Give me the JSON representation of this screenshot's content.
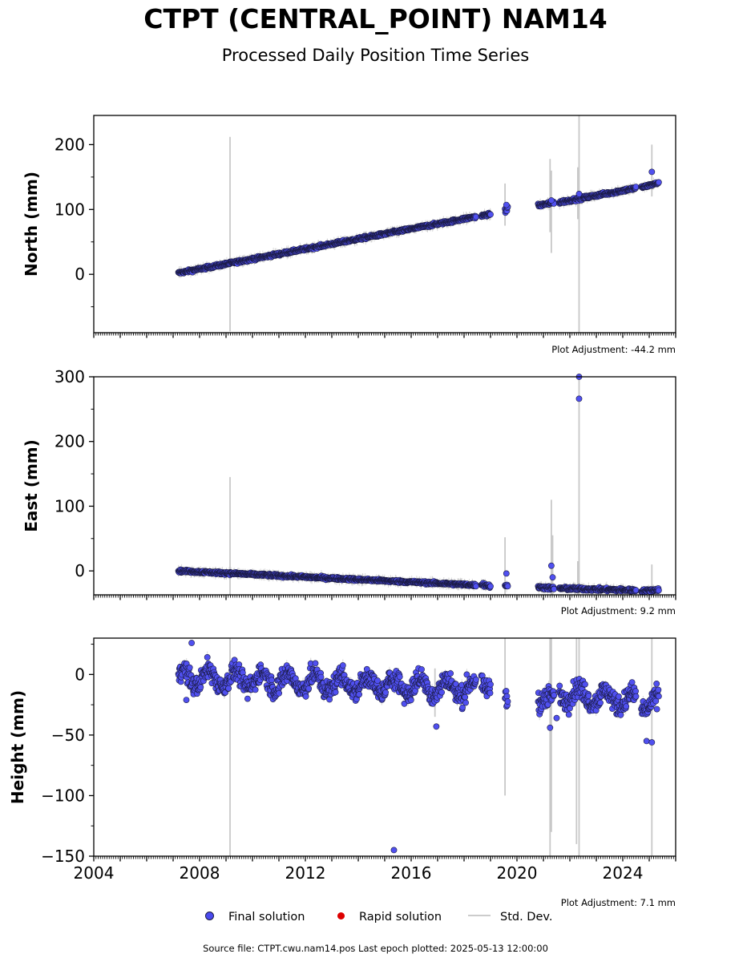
{
  "title": "CTPT (CENTRAL_POINT) NAM14",
  "subtitle": "Processed Daily Position Time Series",
  "footer": "Source file: CTPT.cwu.nam14.pos  Last epoch plotted: 2025-05-13 12:00:00",
  "legend": {
    "items": [
      {
        "label": "Final solution",
        "kind": "dot",
        "color": "#4a4aee"
      },
      {
        "label": "Rapid solution",
        "kind": "dot",
        "color": "#dd0000"
      },
      {
        "label": "Std. Dev.",
        "kind": "line",
        "color": "#cccccc"
      }
    ]
  },
  "colors": {
    "point_fill": "#5050f0",
    "point_edge": "#1a1a40",
    "stddev": "#c8c8c8"
  },
  "chart_data": [
    {
      "type": "scatter",
      "ylabel": "North (mm)",
      "adjustment": "Plot Adjustment: -44.2 mm",
      "ylim": [
        -90,
        245
      ],
      "yticks": [
        0,
        100,
        200
      ],
      "xlim": [
        2004.0,
        2026.0
      ],
      "xticks": [
        2004,
        2008,
        2012,
        2016,
        2020,
        2024
      ],
      "show_xtick_labels": false,
      "segments": [
        {
          "start": 2007.2,
          "end": 2018.45,
          "y0": 2,
          "y1": 89,
          "noise": 1.6
        },
        {
          "start": 2018.65,
          "end": 2019.0,
          "y0": 90,
          "y1": 93,
          "noise": 1.5
        },
        {
          "start": 2019.55,
          "end": 2019.65,
          "y0": 96,
          "y1": 104,
          "noise": 3
        },
        {
          "start": 2020.8,
          "end": 2021.4,
          "y0": 106,
          "y1": 111,
          "noise": 2
        },
        {
          "start": 2021.6,
          "end": 2024.5,
          "y0": 111,
          "y1": 133,
          "noise": 1.8
        },
        {
          "start": 2024.7,
          "end": 2025.36,
          "y0": 134,
          "y1": 141,
          "noise": 1.5
        }
      ],
      "outliers": [
        [
          2025.1,
          158
        ],
        [
          2022.35,
          124
        ],
        [
          2021.3,
          114
        ],
        [
          2019.6,
          107
        ]
      ],
      "stddev_bars": [
        [
          2009.15,
          -88,
          212
        ],
        [
          2021.25,
          65,
          178
        ],
        [
          2021.3,
          33,
          160
        ],
        [
          2022.35,
          -90,
          245
        ],
        [
          2022.3,
          85,
          165
        ],
        [
          2019.55,
          75,
          140
        ],
        [
          2025.1,
          120,
          200
        ]
      ]
    },
    {
      "type": "scatter",
      "ylabel": "East (mm)",
      "adjustment": "Plot Adjustment: 9.2 mm",
      "ylim": [
        -37,
        300
      ],
      "yticks": [
        0,
        100,
        200,
        300
      ],
      "xlim": [
        2004.0,
        2026.0
      ],
      "xticks": [
        2004,
        2008,
        2012,
        2016,
        2020,
        2024
      ],
      "show_xtick_labels": false,
      "segments": [
        {
          "start": 2007.2,
          "end": 2018.45,
          "y0": 0,
          "y1": -22,
          "noise": 1.5
        },
        {
          "start": 2018.65,
          "end": 2019.0,
          "y0": -20,
          "y1": -24,
          "noise": 2
        },
        {
          "start": 2019.55,
          "end": 2019.65,
          "y0": -22,
          "y1": -24,
          "noise": 1.5
        },
        {
          "start": 2020.8,
          "end": 2021.4,
          "y0": -25,
          "y1": -27,
          "noise": 2
        },
        {
          "start": 2021.6,
          "end": 2024.5,
          "y0": -27,
          "y1": -30,
          "noise": 1.8
        },
        {
          "start": 2024.7,
          "end": 2025.36,
          "y0": -31,
          "y1": -29,
          "noise": 1.5
        }
      ],
      "outliers": [
        [
          2022.35,
          300
        ],
        [
          2022.35,
          266
        ],
        [
          2021.3,
          8
        ],
        [
          2019.6,
          -4
        ],
        [
          2021.35,
          -10
        ]
      ],
      "stddev_bars": [
        [
          2009.15,
          -37,
          145
        ],
        [
          2019.55,
          -37,
          52
        ],
        [
          2021.3,
          -37,
          110
        ],
        [
          2021.35,
          -37,
          55
        ],
        [
          2022.35,
          -37,
          300
        ],
        [
          2022.3,
          -37,
          15
        ],
        [
          2025.1,
          -37,
          10
        ]
      ]
    },
    {
      "type": "scatter",
      "ylabel": "Height (mm)",
      "adjustment": "Plot Adjustment: 7.1 mm",
      "ylim": [
        -150,
        30
      ],
      "yticks": [
        0,
        -50,
        -100,
        -150
      ],
      "xlim": [
        2004.0,
        2026.0
      ],
      "xticks": [
        2004,
        2008,
        2012,
        2016,
        2020,
        2024
      ],
      "show_xtick_labels": true,
      "segments": [
        {
          "start": 2007.2,
          "end": 2018.45,
          "y0": -2,
          "y1": -12,
          "noise": 6,
          "seasonal": 7
        },
        {
          "start": 2018.65,
          "end": 2019.0,
          "y0": -8,
          "y1": -10,
          "noise": 5,
          "seasonal": 3
        },
        {
          "start": 2019.55,
          "end": 2019.65,
          "y0": -15,
          "y1": -22,
          "noise": 6
        },
        {
          "start": 2020.8,
          "end": 2021.4,
          "y0": -18,
          "y1": -22,
          "noise": 6,
          "seasonal": 4
        },
        {
          "start": 2021.6,
          "end": 2024.5,
          "y0": -15,
          "y1": -22,
          "noise": 6,
          "seasonal": 6
        },
        {
          "start": 2024.7,
          "end": 2025.36,
          "y0": -25,
          "y1": -22,
          "noise": 6,
          "seasonal": 5
        }
      ],
      "outliers": [
        [
          2007.5,
          -21
        ],
        [
          2007.7,
          26
        ],
        [
          2015.35,
          -145
        ],
        [
          2016.95,
          -43
        ],
        [
          2021.25,
          -44
        ],
        [
          2024.9,
          -55
        ],
        [
          2025.1,
          -56
        ],
        [
          2021.5,
          -36
        ]
      ],
      "stddev_bars": [
        [
          2009.15,
          -150,
          30
        ],
        [
          2019.55,
          -100,
          30
        ],
        [
          2021.25,
          -150,
          30
        ],
        [
          2021.3,
          -130,
          30
        ],
        [
          2022.35,
          -150,
          30
        ],
        [
          2022.25,
          -140,
          30
        ],
        [
          2025.1,
          -150,
          30
        ],
        [
          2016.9,
          -35,
          5
        ]
      ]
    }
  ]
}
